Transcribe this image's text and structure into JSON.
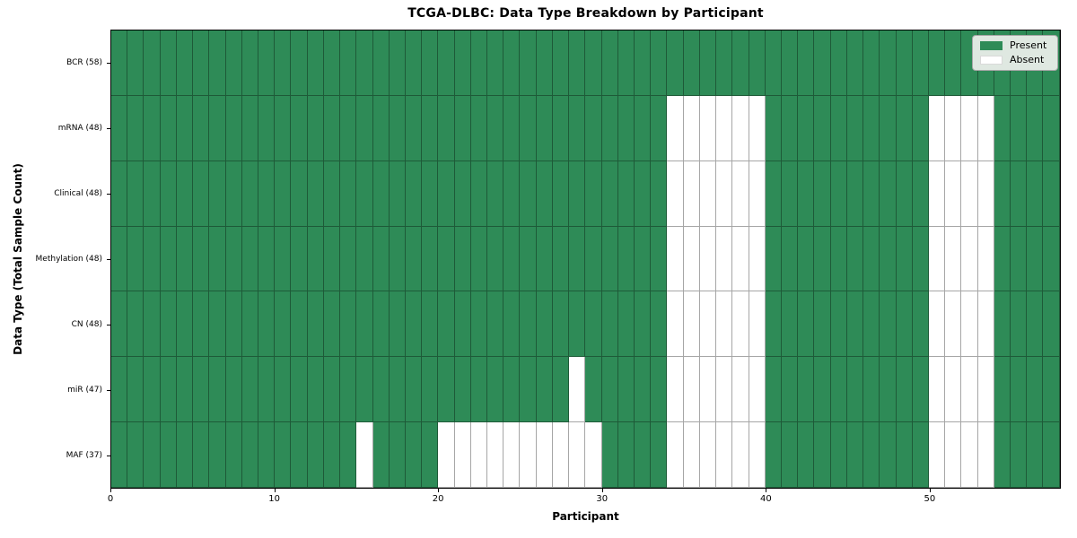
{
  "figure": {
    "background": "#ffffff"
  },
  "chart_data": {
    "type": "heatmap",
    "title": "TCGA-DLBC: Data Type Breakdown by Participant",
    "xlabel": "Participant",
    "ylabel": "Data Type (Total Sample Count)",
    "n_participants": 58,
    "x_ticks": [
      0,
      10,
      20,
      30,
      40,
      50
    ],
    "x_range": [
      0,
      58
    ],
    "grid": true,
    "legend_position": "upper right",
    "colors": {
      "present": "#2e8b57",
      "absent": "#ffffff",
      "cell_edge": "rgba(0,0,0,0.35)",
      "spine": "#000000"
    },
    "legend": [
      {
        "label": "Present",
        "color": "#2e8b57"
      },
      {
        "label": "Absent",
        "color": "#ffffff"
      }
    ],
    "rows": [
      {
        "label": "BCR (58)",
        "present_count": 58,
        "absent_columns": []
      },
      {
        "label": "mRNA (48)",
        "present_count": 48,
        "absent_columns": [
          34,
          35,
          36,
          37,
          38,
          39,
          50,
          51,
          52,
          53
        ]
      },
      {
        "label": "Clinical (48)",
        "present_count": 48,
        "absent_columns": [
          34,
          35,
          36,
          37,
          38,
          39,
          50,
          51,
          52,
          53
        ]
      },
      {
        "label": "Methylation (48)",
        "present_count": 48,
        "absent_columns": [
          34,
          35,
          36,
          37,
          38,
          39,
          50,
          51,
          52,
          53
        ]
      },
      {
        "label": "CN (48)",
        "present_count": 48,
        "absent_columns": [
          34,
          35,
          36,
          37,
          38,
          39,
          50,
          51,
          52,
          53
        ]
      },
      {
        "label": "miR (47)",
        "present_count": 47,
        "absent_columns": [
          28,
          34,
          35,
          36,
          37,
          38,
          39,
          50,
          51,
          52,
          53
        ]
      },
      {
        "label": "MAF (37)",
        "present_count": 37,
        "absent_columns": [
          15,
          20,
          21,
          22,
          23,
          24,
          25,
          26,
          27,
          28,
          29,
          34,
          35,
          36,
          37,
          38,
          39,
          50,
          51,
          52,
          53
        ]
      }
    ]
  }
}
